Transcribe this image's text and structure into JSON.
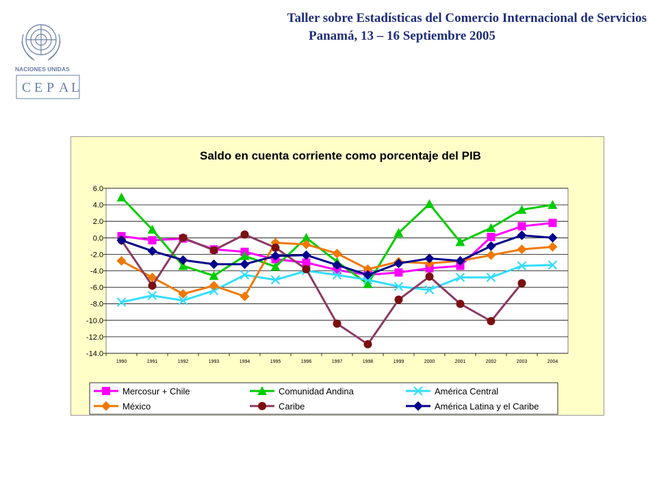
{
  "header": {
    "line1": "Taller sobre Estadísticas del Comercio Internacional de Servicios",
    "line2": "Panamá, 13 – 16 Septiembre 2005"
  },
  "logo": {
    "org": "NACIONES UNIDAS",
    "name": "CEPAL",
    "letters": [
      "C",
      "E",
      "P",
      "A",
      "L"
    ],
    "icon": "un-emblem-icon"
  },
  "chart_data": {
    "type": "line",
    "title": "Saldo en cuenta corriente como porcentaje del PIB",
    "xlabel": "",
    "ylabel": "",
    "ylim": [
      -14,
      6
    ],
    "y_ticks": [
      "6.0",
      "4.0",
      "2.0",
      "0.0",
      "-2.0",
      "-4.0",
      "-6.0",
      "-8.0",
      "-10.0",
      "-12.0",
      "-14.0"
    ],
    "categories": [
      "1990",
      "1991",
      "1992",
      "1993",
      "1994",
      "1995",
      "1996",
      "1997",
      "1998",
      "1999",
      "2000",
      "2001",
      "2002",
      "2003",
      "2004"
    ],
    "grid": true,
    "legend_position": "bottom",
    "series": [
      {
        "name": "Mercosur + Chile",
        "color": "#ff00ff",
        "marker": "square",
        "values": [
          0.2,
          -0.3,
          -0.1,
          -1.4,
          -1.7,
          -2.6,
          -3.0,
          -3.9,
          -4.5,
          -4.2,
          -3.7,
          -3.4,
          0.1,
          1.4,
          1.8
        ]
      },
      {
        "name": "Comunidad Andina",
        "color": "#00cc00",
        "marker": "triangle",
        "values": [
          4.9,
          1.0,
          -3.4,
          -4.6,
          -2.2,
          -3.5,
          0.0,
          -2.9,
          -5.6,
          0.6,
          4.1,
          -0.5,
          1.2,
          3.4,
          4.0
        ]
      },
      {
        "name": "América Central",
        "color": "#33ddff",
        "marker": "x",
        "values": [
          -7.8,
          -7.0,
          -7.6,
          -6.4,
          -4.5,
          -5.1,
          -4.0,
          -4.5,
          -5.1,
          -5.9,
          -6.3,
          -4.8,
          -4.8,
          -3.4,
          -3.3
        ]
      },
      {
        "name": "México",
        "color": "#f07800",
        "marker": "diamond",
        "values": [
          -2.8,
          -4.8,
          -6.8,
          -5.8,
          -7.1,
          -0.6,
          -0.8,
          -1.9,
          -3.8,
          -2.9,
          -3.1,
          -2.8,
          -2.1,
          -1.4,
          -1.1
        ]
      },
      {
        "name": "Caribe",
        "color": "#8b3a62",
        "marker": "circle",
        "marker_color": "#7a1010",
        "values": [
          -0.3,
          -5.8,
          0.0,
          -1.5,
          0.4,
          -1.2,
          -3.8,
          -10.4,
          -12.9,
          -7.5,
          -4.7,
          -8.0,
          -10.1,
          -5.5,
          null
        ]
      },
      {
        "name": "América Latina y el Caribe",
        "color": "#00008b",
        "marker": "diamond",
        "values": [
          -0.3,
          -1.6,
          -2.7,
          -3.2,
          -3.2,
          -2.2,
          -2.1,
          -3.3,
          -4.5,
          -3.1,
          -2.5,
          -2.8,
          -1.0,
          0.3,
          0.0
        ]
      }
    ]
  }
}
